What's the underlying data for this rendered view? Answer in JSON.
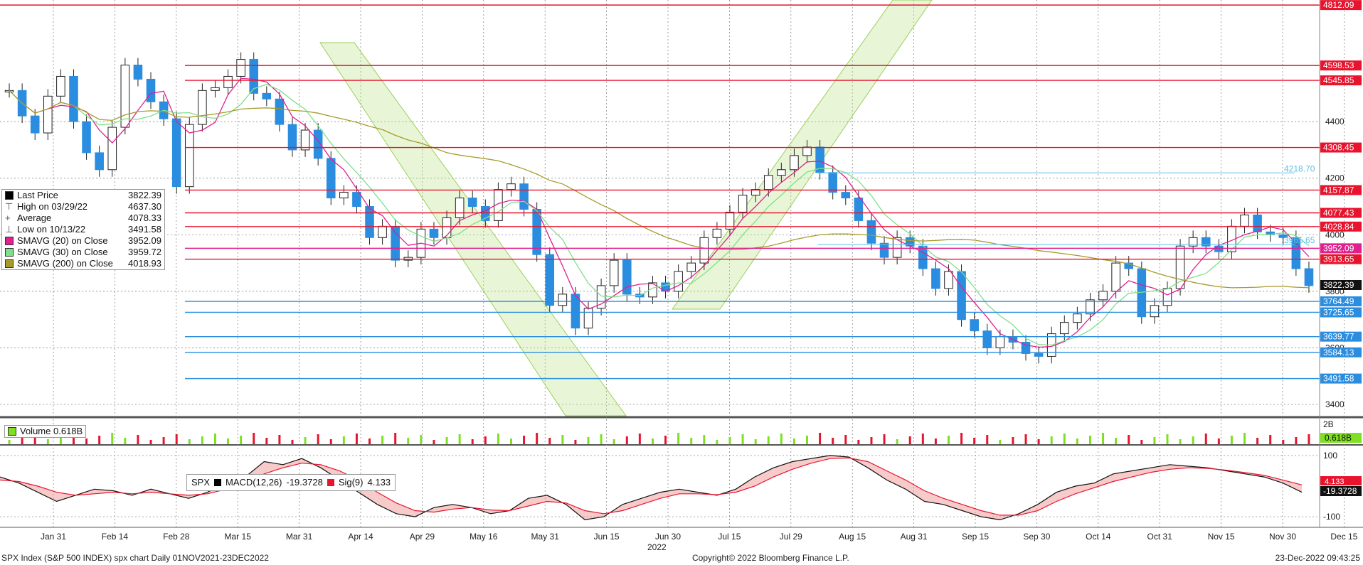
{
  "chart_data": {
    "type": "candlestick",
    "instrument": "SPX",
    "x_tick_labels": [
      "Jan 31",
      "Feb 14",
      "Feb 28",
      "Mar 15",
      "Mar 31",
      "Apr 14",
      "Apr 29",
      "May 16",
      "May 31",
      "Jun 15",
      "Jun 30",
      "Jul 15",
      "Jul 29",
      "Aug 15",
      "Aug 31",
      "Sep 15",
      "Sep 30",
      "Oct 14",
      "Oct 31",
      "Nov 15",
      "Nov 30",
      "Dec 15"
    ],
    "x_year_label": "2022",
    "y_tick_labels": [
      "4400",
      "4200",
      "4000",
      "3800",
      "3600",
      "3400"
    ],
    "price_ylim": [
      3360,
      4830
    ],
    "closes": [
      4510,
      4420,
      4360,
      4490,
      4560,
      4400,
      4290,
      4230,
      4380,
      4600,
      4550,
      4470,
      4410,
      4170,
      4390,
      4510,
      4520,
      4560,
      4620,
      4500,
      4480,
      4390,
      4300,
      4370,
      4270,
      4130,
      4150,
      4100,
      3990,
      4030,
      3910,
      3920,
      4020,
      3990,
      4060,
      4130,
      4100,
      4050,
      4160,
      4180,
      4090,
      3930,
      3750,
      3790,
      3670,
      3740,
      3820,
      3910,
      3790,
      3780,
      3830,
      3800,
      3870,
      3900,
      3990,
      4020,
      4080,
      4140,
      4160,
      4210,
      4230,
      4280,
      4310,
      4220,
      4150,
      4130,
      4050,
      3970,
      3920,
      3990,
      3960,
      3880,
      3810,
      3870,
      3700,
      3660,
      3600,
      3640,
      3620,
      3580,
      3570,
      3650,
      3690,
      3720,
      3770,
      3800,
      3900,
      3880,
      3710,
      3750,
      3810,
      3960,
      3990,
      3960,
      3940,
      4030,
      4070,
      4010,
      4000,
      3990,
      3880,
      3820
    ],
    "series": [
      {
        "name": "SMAVG (20)  on Close",
        "color": "#e0208f"
      },
      {
        "name": "SMAVG (30)  on Close",
        "color": "#7ee08a"
      },
      {
        "name": "SMAVG (200)  on Close",
        "color": "#a89a2a"
      }
    ],
    "horizontal_levels": [
      {
        "label": "4812.09",
        "value": 4812.09,
        "color": "#e8142e"
      },
      {
        "label": "4598.53",
        "value": 4598.53,
        "color": "#e8142e"
      },
      {
        "label": "4545.85",
        "value": 4545.85,
        "color": "#e8142e"
      },
      {
        "label": "4308.45",
        "value": 4308.45,
        "color": "#e8142e"
      },
      {
        "label": "4157.87",
        "value": 4157.87,
        "color": "#e8142e"
      },
      {
        "label": "4077.43",
        "value": 4077.43,
        "color": "#e8142e"
      },
      {
        "label": "4028.84",
        "value": 4028.84,
        "color": "#e8142e"
      },
      {
        "label": "3952.09",
        "value": 3952.09,
        "color": "#e0208f"
      },
      {
        "label": "3913.65",
        "value": 3913.65,
        "color": "#e8142e"
      },
      {
        "label": "3822.39",
        "value": 3822.39,
        "color": "#000000"
      },
      {
        "label": "3764.49",
        "value": 3764.49,
        "color": "#2a8de0"
      },
      {
        "label": "3725.65",
        "value": 3725.65,
        "color": "#2a8de0"
      },
      {
        "label": "3639.77",
        "value": 3639.77,
        "color": "#2a8de0"
      },
      {
        "label": "3584.13",
        "value": 3584.13,
        "color": "#2a8de0"
      },
      {
        "label": "3491.58",
        "value": 3491.58,
        "color": "#2a8de0"
      }
    ],
    "inline_labels": [
      {
        "label": "4218.70",
        "value": 4218.7,
        "color": "#5bc0e8"
      },
      {
        "label": "3965.65",
        "value": 3965.65,
        "color": "#5bc0e8"
      }
    ],
    "volume_ticks": [
      "2B"
    ],
    "volume_last": "0.618B",
    "macd_ticks": [
      "100",
      "-100"
    ],
    "macd_last_labels": [
      "4.133",
      "-19.3728"
    ],
    "macd_ylim": [
      -130,
      130
    ],
    "macd_values": [
      30,
      10,
      -20,
      -50,
      -30,
      -10,
      -15,
      -30,
      -10,
      -25,
      -40,
      -20,
      10,
      30,
      80,
      70,
      90,
      60,
      20,
      -20,
      -60,
      -90,
      -100,
      -70,
      -60,
      -70,
      -90,
      -80,
      -40,
      -30,
      -60,
      -110,
      -100,
      -60,
      -40,
      -20,
      -10,
      -20,
      -30,
      -10,
      30,
      60,
      80,
      90,
      100,
      95,
      60,
      20,
      -10,
      -50,
      -60,
      -80,
      -100,
      -110,
      -90,
      -60,
      -20,
      0,
      10,
      40,
      50,
      60,
      70,
      65,
      60,
      50,
      40,
      30,
      10,
      -20
    ],
    "signal_values": [
      20,
      15,
      0,
      -20,
      -30,
      -25,
      -20,
      -25,
      -20,
      -25,
      -30,
      -25,
      -10,
      10,
      40,
      60,
      75,
      70,
      50,
      20,
      -20,
      -55,
      -80,
      -85,
      -75,
      -70,
      -78,
      -80,
      -65,
      -50,
      -55,
      -80,
      -90,
      -80,
      -60,
      -40,
      -25,
      -25,
      -28,
      -20,
      0,
      30,
      55,
      75,
      90,
      92,
      80,
      50,
      20,
      -15,
      -40,
      -60,
      -80,
      -95,
      -95,
      -80,
      -50,
      -25,
      -5,
      15,
      30,
      45,
      55,
      60,
      58,
      52,
      44,
      35,
      20,
      4
    ]
  },
  "legend": {
    "items": [
      {
        "label": "Last Price",
        "value": "3822.39",
        "color": "#000000"
      },
      {
        "label": "High on 03/29/22",
        "value": "4637.30",
        "color": ""
      },
      {
        "label": "Average",
        "value": "4078.33",
        "color": ""
      },
      {
        "label": "Low on 10/13/22",
        "value": "3491.58",
        "color": ""
      },
      {
        "label": "SMAVG (20)  on Close",
        "value": "3952.09",
        "color": "#e0208f"
      },
      {
        "label": "SMAVG (30)  on Close",
        "value": "3959.72",
        "color": "#7ee08a"
      },
      {
        "label": "SMAVG (200)  on Close",
        "value": "4018.93",
        "color": "#a89a2a"
      }
    ]
  },
  "volume": {
    "label": "Volume",
    "value": "0.618B"
  },
  "macd": {
    "ticker": "SPX",
    "macd_label": "MACD(12,26)",
    "macd_value": "-19.3728",
    "sig_label": "Sig(9)",
    "sig_value": "4.133"
  },
  "footer": {
    "left": "SPX Index (S&P 500 INDEX) spx chart  Daily 01NOV2021-23DEC2022",
    "center": "Copyright© 2022 Bloomberg Finance L.P.",
    "right": "23-Dec-2022 09:43:25"
  }
}
